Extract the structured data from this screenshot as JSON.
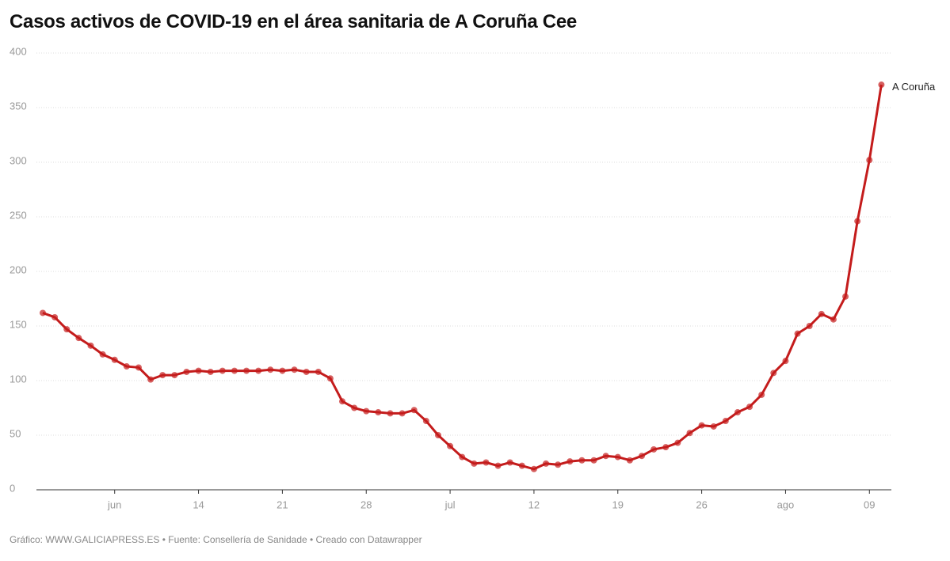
{
  "chart_data": {
    "type": "line",
    "title": "Casos activos de COVID-19 en el área sanitaria de A Coruña Cee",
    "footer": "Gráfico: WWW.GALICIAPRESS.ES • Fuente: Consellería de Sanidade • Creado con Datawrapper",
    "categories": [
      null,
      null,
      null,
      null,
      null,
      null,
      "jun",
      null,
      null,
      null,
      null,
      null,
      null,
      "14",
      null,
      null,
      null,
      null,
      null,
      null,
      "21",
      null,
      null,
      null,
      null,
      null,
      null,
      "28",
      null,
      null,
      null,
      null,
      null,
      null,
      "jul",
      null,
      null,
      null,
      null,
      null,
      null,
      "12",
      null,
      null,
      null,
      null,
      null,
      null,
      "19",
      null,
      null,
      null,
      null,
      null,
      null,
      "26",
      null,
      null,
      null,
      null,
      null,
      null,
      "ago",
      null,
      null,
      null,
      null,
      null,
      null,
      "09",
      null
    ],
    "series": [
      {
        "name": "A Coruña",
        "color": "#c41c1c",
        "values": [
          162,
          158,
          147,
          139,
          132,
          124,
          119,
          113,
          112,
          101,
          105,
          105,
          108,
          109,
          108,
          109,
          109,
          109,
          109,
          110,
          109,
          110,
          108,
          108,
          102,
          81,
          75,
          72,
          71,
          70,
          70,
          73,
          63,
          50,
          40,
          30,
          24,
          25,
          22,
          25,
          22,
          19,
          24,
          23,
          26,
          27,
          27,
          31,
          30,
          27,
          31,
          37,
          39,
          43,
          52,
          59,
          58,
          63,
          71,
          76,
          87,
          107,
          118,
          143,
          150,
          161,
          156,
          177,
          246,
          302,
          371
        ]
      }
    ],
    "ylim": [
      0,
      400
    ],
    "yticks": [
      0,
      50,
      100,
      150,
      200,
      250,
      300,
      350,
      400
    ],
    "grid": true
  }
}
